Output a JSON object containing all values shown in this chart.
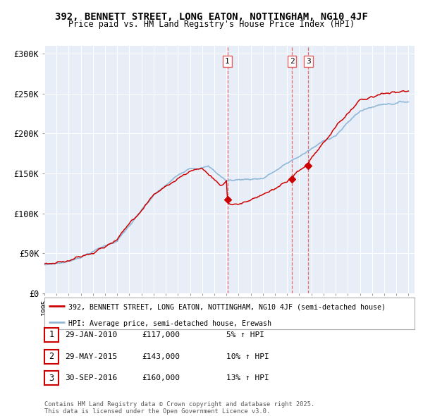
{
  "title": "392, BENNETT STREET, LONG EATON, NOTTINGHAM, NG10 4JF",
  "subtitle": "Price paid vs. HM Land Registry's House Price Index (HPI)",
  "property_label": "392, BENNETT STREET, LONG EATON, NOTTINGHAM, NG10 4JF (semi-detached house)",
  "hpi_label": "HPI: Average price, semi-detached house, Erewash",
  "property_color": "#cc0000",
  "hpi_color": "#90b8d8",
  "vline_color": "#e06060",
  "ylim": [
    0,
    310000
  ],
  "yticks": [
    0,
    50000,
    100000,
    150000,
    200000,
    250000,
    300000
  ],
  "ytick_labels": [
    "£0",
    "£50K",
    "£100K",
    "£150K",
    "£200K",
    "£250K",
    "£300K"
  ],
  "transactions": [
    {
      "num": 1,
      "date": "29-JAN-2010",
      "price": 117000,
      "pct": "5%",
      "dir": "↑",
      "year": 2010.08
    },
    {
      "num": 2,
      "date": "29-MAY-2015",
      "price": 143000,
      "pct": "10%",
      "dir": "↑",
      "year": 2015.41
    },
    {
      "num": 3,
      "date": "30-SEP-2016",
      "price": 160000,
      "pct": "13%",
      "dir": "↑",
      "year": 2016.75
    }
  ],
  "footer": "Contains HM Land Registry data © Crown copyright and database right 2025.\nThis data is licensed under the Open Government Licence v3.0.",
  "background_color": "#e8eef8",
  "xlim_start": 1995,
  "xlim_end": 2025.5
}
